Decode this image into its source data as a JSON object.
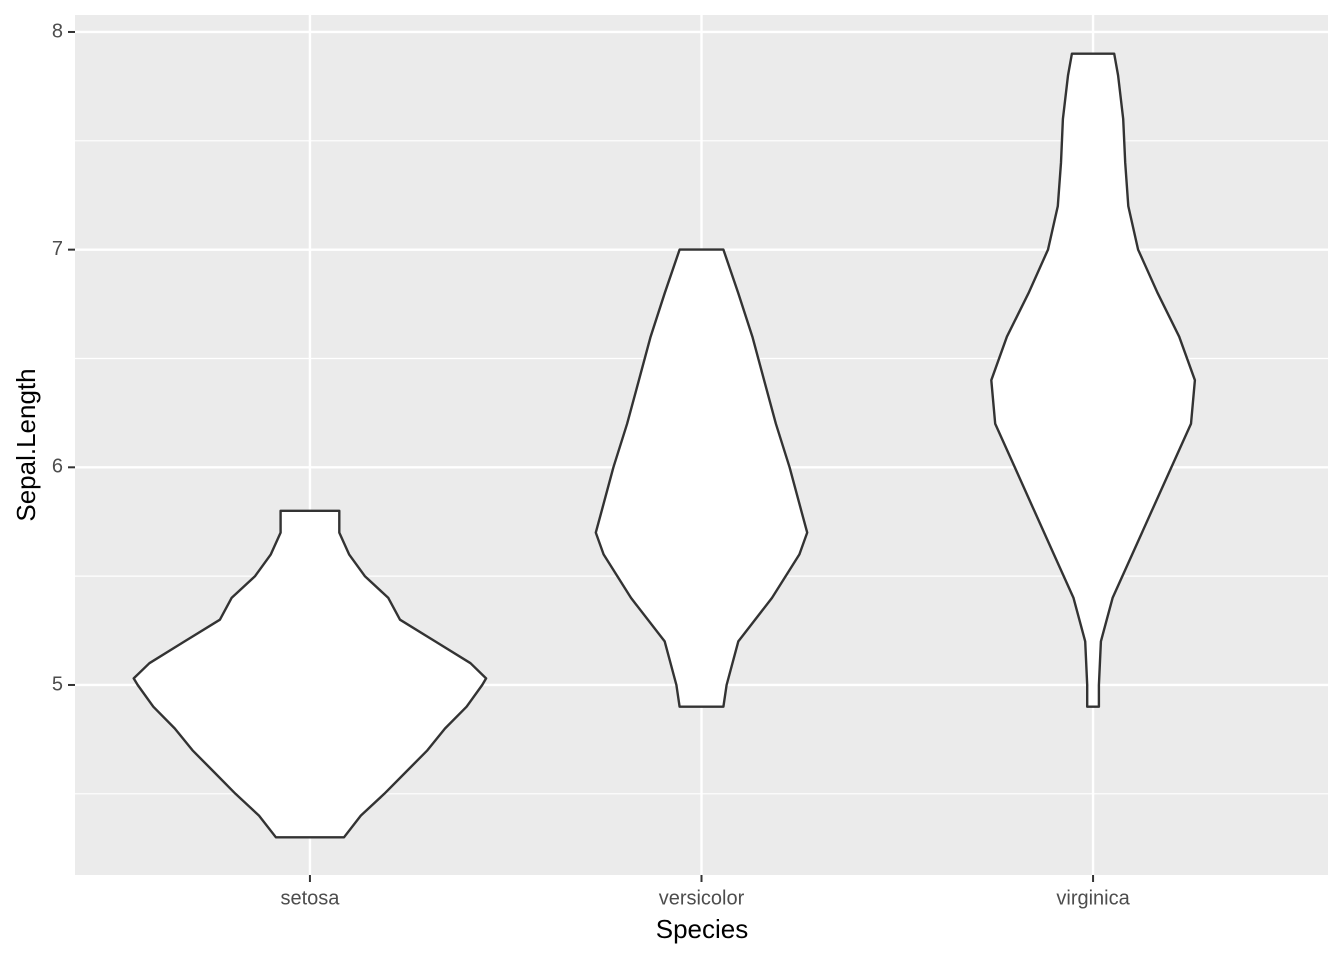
{
  "chart_data": {
    "type": "violin",
    "x_label": "Species",
    "y_label": "Sepal.Length",
    "categories": [
      "setosa",
      "versicolor",
      "virginica"
    ],
    "series": [
      {
        "name": "setosa",
        "y": [
          4.3,
          4.4,
          4.5,
          4.6,
          4.7,
          4.8,
          4.9,
          5.0,
          5.03,
          5.1,
          5.2,
          5.3,
          5.4,
          5.5,
          5.6,
          5.7,
          5.8
        ],
        "width": [
          0.087,
          0.13,
          0.19,
          0.245,
          0.3,
          0.345,
          0.4,
          0.44,
          0.45,
          0.41,
          0.32,
          0.23,
          0.2,
          0.14,
          0.1,
          0.075,
          0.075
        ]
      },
      {
        "name": "versicolor",
        "y": [
          4.9,
          5.0,
          5.2,
          5.4,
          5.6,
          5.7,
          5.8,
          6.0,
          6.2,
          6.4,
          6.6,
          6.8,
          7.0
        ],
        "width": [
          0.056,
          0.064,
          0.094,
          0.18,
          0.25,
          0.27,
          0.255,
          0.225,
          0.19,
          0.16,
          0.13,
          0.094,
          0.056
        ]
      },
      {
        "name": "virginica",
        "y": [
          4.9,
          5.0,
          5.2,
          5.4,
          5.6,
          5.8,
          6.0,
          6.2,
          6.4,
          6.6,
          6.8,
          7.0,
          7.2,
          7.4,
          7.6,
          7.8,
          7.9
        ],
        "width": [
          0.015,
          0.015,
          0.02,
          0.05,
          0.1,
          0.15,
          0.2,
          0.25,
          0.26,
          0.22,
          0.165,
          0.115,
          0.09,
          0.082,
          0.077,
          0.064,
          0.054
        ]
      }
    ],
    "fill": "#ffffff",
    "stroke": "#333333",
    "ylim": [
      4.127,
      8.078
    ],
    "yticks": [
      5,
      6,
      7,
      8
    ],
    "yminorticks": [
      4.5,
      5.5,
      6.5,
      7.5
    ],
    "grid": true
  }
}
